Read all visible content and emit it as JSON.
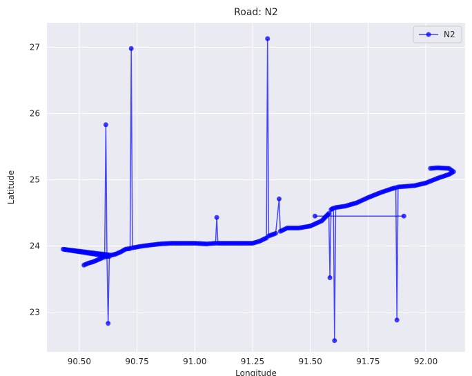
{
  "chart_data": {
    "type": "line",
    "title": "Road: N2",
    "xlabel": "Longitude",
    "ylabel": "Latitude",
    "xlim": [
      90.36,
      92.17
    ],
    "ylim": [
      22.4,
      27.37
    ],
    "xticks": [
      90.5,
      90.75,
      91.0,
      91.25,
      91.5,
      91.75,
      92.0
    ],
    "xtick_labels": [
      "90.50",
      "90.75",
      "91.00",
      "91.25",
      "91.50",
      "91.75",
      "92.00"
    ],
    "yticks": [
      23,
      24,
      25,
      26,
      27
    ],
    "ytick_labels": [
      "23",
      "24",
      "25",
      "26",
      "27"
    ],
    "grid": true,
    "background": "#eaeaf2",
    "legend": {
      "position": "top-right",
      "entries": [
        "N2"
      ]
    },
    "series": [
      {
        "name": "N2",
        "color": "#0000ff",
        "marker": "circle",
        "points": [
          [
            90.52,
            23.71
          ],
          [
            90.54,
            23.74
          ],
          [
            90.56,
            23.76
          ],
          [
            90.58,
            23.79
          ],
          [
            90.6,
            23.82
          ],
          [
            90.61,
            23.83
          ],
          [
            90.615,
            25.83
          ],
          [
            90.62,
            23.84
          ],
          [
            90.625,
            22.83
          ],
          [
            90.63,
            23.84
          ],
          [
            90.43,
            23.95
          ],
          [
            90.64,
            23.86
          ],
          [
            90.66,
            23.88
          ],
          [
            90.68,
            23.91
          ],
          [
            90.7,
            23.95
          ],
          [
            90.72,
            23.96
          ],
          [
            90.725,
            26.98
          ],
          [
            90.73,
            23.97
          ],
          [
            90.76,
            23.99
          ],
          [
            90.8,
            24.01
          ],
          [
            90.85,
            24.03
          ],
          [
            90.9,
            24.04
          ],
          [
            90.95,
            24.04
          ],
          [
            91.0,
            24.04
          ],
          [
            91.05,
            24.03
          ],
          [
            91.09,
            24.04
          ],
          [
            91.095,
            24.43
          ],
          [
            91.1,
            24.04
          ],
          [
            91.15,
            24.04
          ],
          [
            91.2,
            24.04
          ],
          [
            91.25,
            24.04
          ],
          [
            91.28,
            24.07
          ],
          [
            91.31,
            24.12
          ],
          [
            91.315,
            27.13
          ],
          [
            91.32,
            24.15
          ],
          [
            91.35,
            24.19
          ],
          [
            91.365,
            24.71
          ],
          [
            91.37,
            24.22
          ],
          [
            91.4,
            24.27
          ],
          [
            91.45,
            24.27
          ],
          [
            91.5,
            24.3
          ],
          [
            91.55,
            24.38
          ],
          [
            91.58,
            24.49
          ],
          [
            91.585,
            23.52
          ],
          [
            91.59,
            24.55
          ],
          [
            91.6,
            24.57
          ],
          [
            91.605,
            22.57
          ],
          [
            91.61,
            24.58
          ],
          [
            91.65,
            24.6
          ],
          [
            91.7,
            24.65
          ],
          [
            91.75,
            24.73
          ],
          [
            91.8,
            24.8
          ],
          [
            91.85,
            24.86
          ],
          [
            91.87,
            24.88
          ],
          [
            91.875,
            22.88
          ],
          [
            91.88,
            24.89
          ],
          [
            91.95,
            24.91
          ],
          [
            92.0,
            24.95
          ],
          [
            92.05,
            25.02
          ],
          [
            92.1,
            25.08
          ],
          [
            92.12,
            25.12
          ],
          [
            92.1,
            25.17
          ],
          [
            92.05,
            25.18
          ],
          [
            92.02,
            25.17
          ]
        ],
        "extra_points": [
          [
            91.52,
            24.45
          ],
          [
            91.905,
            24.45
          ]
        ]
      }
    ]
  }
}
